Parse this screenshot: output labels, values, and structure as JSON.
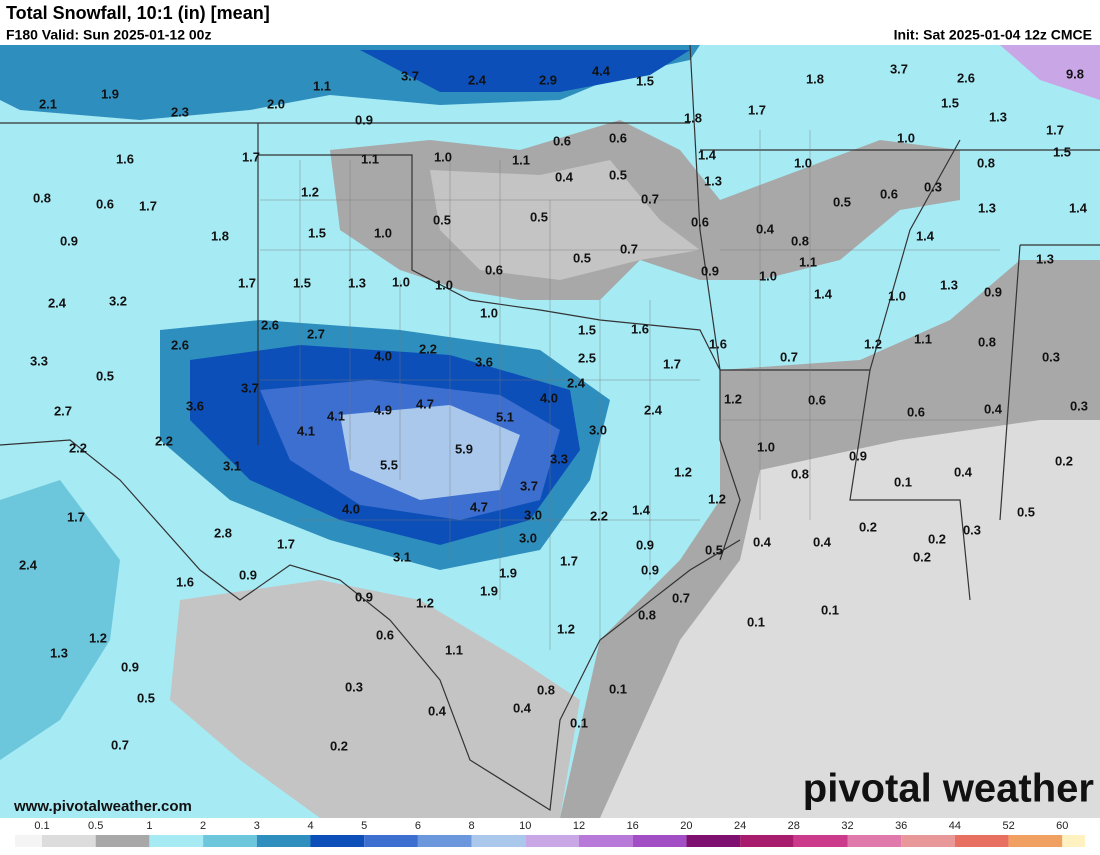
{
  "header": {
    "title": "Total Snowfall, 10:1 (in) [mean]",
    "valid": "F180 Valid: Sun 2025-01-12 00z",
    "init": "Init: Sat 2025-01-04 12z CMCE"
  },
  "map": {
    "labels": [
      "2.1",
      "1.9",
      "2.3",
      "2.0",
      "1.1",
      "3.7",
      "2.4",
      "2.9",
      "4.4",
      "1.5",
      "1.8",
      "3.7",
      "2.6",
      "9.8",
      "1.5",
      "1.3",
      "1.7",
      "1.5",
      "0.9",
      "1.8",
      "1.7",
      "0.6",
      "0.6",
      "1.4",
      "1.0",
      "0.8",
      "1.6",
      "1.7",
      "1.1",
      "1.0",
      "1.1",
      "0.4",
      "0.5",
      "1.3",
      "1.0",
      "0.3",
      "0.8",
      "0.6",
      "1.7",
      "1.2",
      "0.5",
      "0.5",
      "0.7",
      "0.5",
      "0.6",
      "1.3",
      "1.4",
      "0.9",
      "1.8",
      "1.5",
      "1.0",
      "0.6",
      "0.4",
      "0.8",
      "1.4",
      "0.5",
      "0.7",
      "0.6",
      "0.9",
      "1.0",
      "1.1",
      "1.3",
      "2.4",
      "3.2",
      "1.7",
      "1.5",
      "1.3",
      "1.0",
      "1.0",
      "1.4",
      "1.0",
      "1.3",
      "0.9",
      "1.0",
      "1.5",
      "1.6",
      "2.6",
      "2.7",
      "1.6",
      "1.1",
      "0.8",
      "1.2",
      "3.3",
      "0.5",
      "2.6",
      "4.0",
      "2.2",
      "3.6",
      "2.5",
      "1.7",
      "0.7",
      "0.3",
      "2.7",
      "3.7",
      "3.6",
      "2.4",
      "4.0",
      "4.1",
      "4.9",
      "4.7",
      "5.1",
      "2.4",
      "1.2",
      "0.6",
      "0.6",
      "0.4",
      "0.3",
      "2.2",
      "2.2",
      "4.1",
      "3.0",
      "1.0",
      "5.9",
      "3.1",
      "5.5",
      "3.3",
      "1.2",
      "0.8",
      "0.9",
      "0.4",
      "0.2",
      "0.1",
      "3.7",
      "1.2",
      "1.7",
      "4.7",
      "3.0",
      "4.0",
      "2.2",
      "1.4",
      "0.5",
      "2.8",
      "1.7",
      "3.0",
      "0.9",
      "0.5",
      "0.4",
      "0.4",
      "0.2",
      "0.2",
      "0.3",
      "0.2",
      "2.4",
      "3.1",
      "1.7",
      "0.9",
      "1.6",
      "1.9",
      "0.9",
      "0.9",
      "1.2",
      "1.9",
      "0.7",
      "0.8",
      "0.1",
      "0.1",
      "1.2",
      "0.6",
      "1.2",
      "1.3",
      "1.1",
      "0.9",
      "0.3",
      "0.8",
      "0.1",
      "0.5",
      "0.4",
      "0.4",
      "0.1",
      "0.7",
      "0.2"
    ]
  },
  "legend": {
    "ticks": [
      0.1,
      0.5,
      1,
      2,
      3,
      4,
      5,
      6,
      8,
      10,
      12,
      16,
      20,
      24,
      28,
      32,
      36,
      44,
      52,
      60
    ],
    "colors": [
      "#f4f4f4",
      "#dcdcdc",
      "#a8a8a8",
      "#a6eaf4",
      "#6cc6dc",
      "#2e8fbe",
      "#0c4fb8",
      "#3d6fd0",
      "#6b97dc",
      "#a9c8ec",
      "#c9a6e6",
      "#b77ad8",
      "#a24fc6",
      "#7e1070",
      "#a81c6e",
      "#cc3a8c",
      "#e07aac",
      "#e89898",
      "#e87060",
      "#f0a060",
      "#fff2c0"
    ]
  },
  "footer": {
    "url": "www.pivotalweather.com",
    "brand": "pivotal weather"
  }
}
